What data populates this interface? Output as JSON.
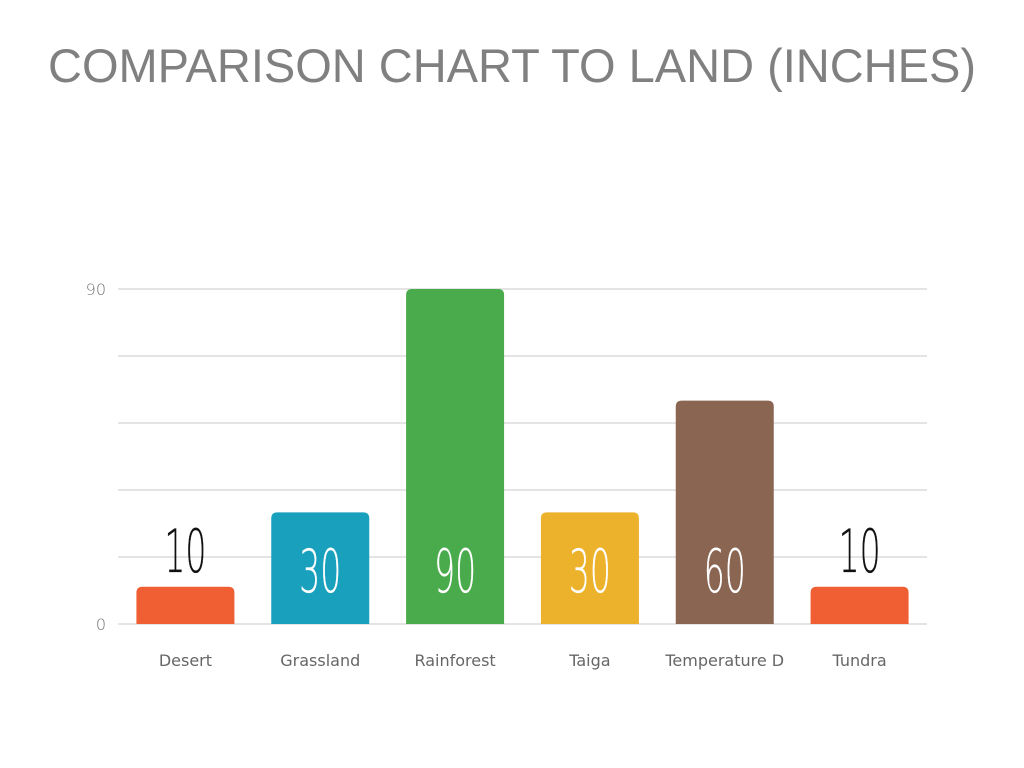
{
  "chart_data": {
    "type": "bar",
    "title": "COMPARISON CHART TO LAND (INCHES)",
    "xlabel": "",
    "ylabel": "",
    "categories": [
      "Desert",
      "Grassland",
      "Rainforest",
      "Taiga",
      "Temperature D",
      "Tundra"
    ],
    "values": [
      10,
      30,
      90,
      30,
      60,
      10
    ],
    "data_labels": [
      "10",
      "30",
      "90",
      "30",
      "60",
      "10"
    ],
    "colors": [
      "#f05e33",
      "#18a0bd",
      "#49ab4b",
      "#ecb22b",
      "#8a6552",
      "#f05e33"
    ],
    "ylim": [
      0,
      90
    ],
    "y_tick_labels": [
      "0",
      "90"
    ],
    "y_gridlines": [
      0,
      18,
      36,
      54,
      72,
      90
    ],
    "grid": true,
    "legend": "none"
  }
}
